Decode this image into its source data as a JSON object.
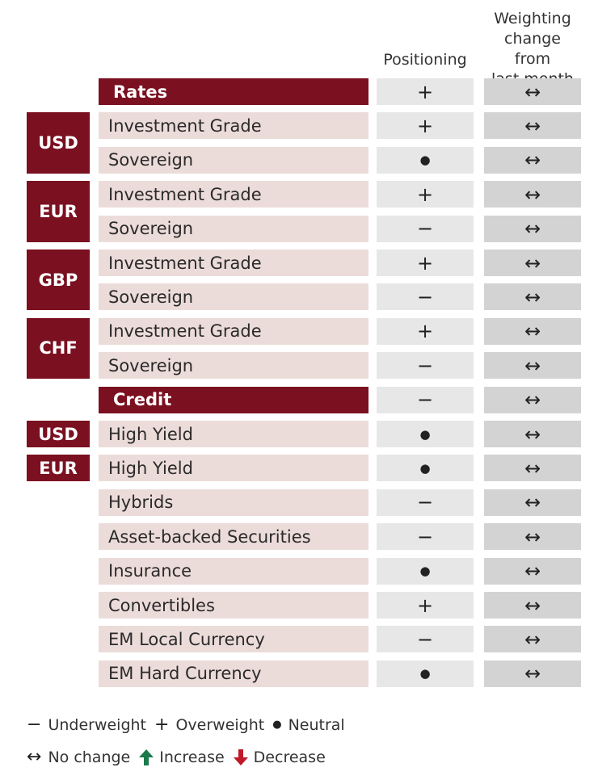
{
  "chart_data": {
    "type": "table",
    "headers": {
      "positioning": "Positioning",
      "change": "Weighting change from last month"
    },
    "header_lines": {
      "change": [
        "Weighting",
        "change from",
        "last month"
      ]
    },
    "sections": [
      {
        "title": "Rates",
        "section_positioning": "+",
        "section_change": "↔",
        "groups": [
          {
            "currency": "USD",
            "rows": [
              {
                "label": "Investment Grade",
                "positioning": "+",
                "change": "↔"
              },
              {
                "label": "Sovereign",
                "positioning": "●",
                "change": "↔"
              }
            ]
          },
          {
            "currency": "EUR",
            "rows": [
              {
                "label": "Investment Grade",
                "positioning": "+",
                "change": "↔"
              },
              {
                "label": "Sovereign",
                "positioning": "−",
                "change": "↔"
              }
            ]
          },
          {
            "currency": "GBP",
            "rows": [
              {
                "label": "Investment Grade",
                "positioning": "+",
                "change": "↔"
              },
              {
                "label": "Sovereign",
                "positioning": "−",
                "change": "↔"
              }
            ]
          },
          {
            "currency": "CHF",
            "rows": [
              {
                "label": "Investment Grade",
                "positioning": "+",
                "change": "↔"
              },
              {
                "label": "Sovereign",
                "positioning": "−",
                "change": "↔"
              }
            ]
          }
        ]
      },
      {
        "title": "Credit",
        "section_positioning": "−",
        "section_change": "↔",
        "groups": [
          {
            "currency": "USD",
            "rows": [
              {
                "label": "High Yield",
                "positioning": "●",
                "change": "↔"
              }
            ]
          },
          {
            "currency": "EUR",
            "rows": [
              {
                "label": "High Yield",
                "positioning": "●",
                "change": "↔"
              }
            ]
          },
          {
            "currency": "",
            "rows": [
              {
                "label": "Hybrids",
                "positioning": "−",
                "change": "↔"
              },
              {
                "label": "Asset-backed Securities",
                "positioning": "−",
                "change": "↔"
              },
              {
                "label": "Insurance",
                "positioning": "●",
                "change": "↔"
              },
              {
                "label": "Convertibles",
                "positioning": "+",
                "change": "↔"
              },
              {
                "label": "EM Local Currency",
                "positioning": "−",
                "change": "↔"
              },
              {
                "label": "EM Hard Currency",
                "positioning": "●",
                "change": "↔"
              }
            ]
          }
        ]
      }
    ],
    "legend": [
      {
        "symbol": "−",
        "text": "Underweight"
      },
      {
        "symbol": "+",
        "text": "Overweight"
      },
      {
        "symbol": "●",
        "text": "Neutral"
      },
      {
        "symbol": "↔",
        "text": "No change"
      },
      {
        "symbol": "increase-arrow-icon",
        "text": "Increase",
        "color": "#1a7a4a"
      },
      {
        "symbol": "decrease-arrow-icon",
        "text": "Decrease",
        "color": "#c0182a"
      }
    ]
  },
  "colors": {
    "section_bg": "#7a1020",
    "label_bg": "#ecdcd9",
    "positioning_bg": "#e7e7e7",
    "change_bg": "#d3d3d3",
    "increase": "#1a7a4a",
    "decrease": "#c0182a"
  }
}
